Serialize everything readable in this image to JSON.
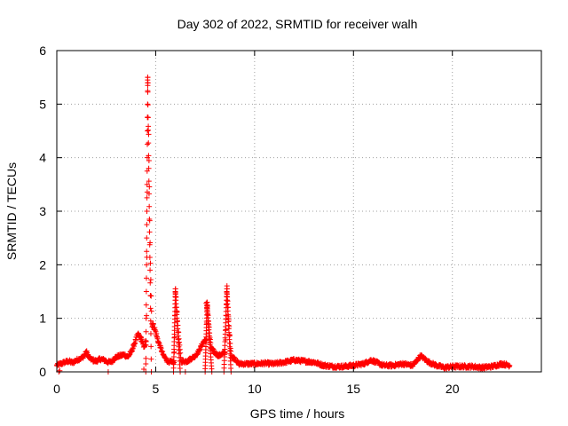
{
  "chart_data": {
    "type": "scatter",
    "title": "Day 302 of 2022, SRMTID for receiver walh",
    "xlabel": "GPS time / hours",
    "ylabel": "SRMTID / TECUs",
    "xlim": [
      0,
      24.5
    ],
    "ylim": [
      0,
      6
    ],
    "xticks": [
      0,
      5,
      10,
      15,
      20
    ],
    "yticks": [
      0,
      1,
      2,
      3,
      4,
      5,
      6
    ],
    "grid": true,
    "marker": "plus",
    "series_color": "#ff0000",
    "baseline": [
      [
        0.0,
        0.12
      ],
      [
        0.2,
        0.15
      ],
      [
        0.4,
        0.18
      ],
      [
        0.6,
        0.2
      ],
      [
        0.8,
        0.17
      ],
      [
        1.0,
        0.22
      ],
      [
        1.2,
        0.25
      ],
      [
        1.4,
        0.3
      ],
      [
        1.5,
        0.38
      ],
      [
        1.6,
        0.28
      ],
      [
        1.8,
        0.22
      ],
      [
        2.0,
        0.2
      ],
      [
        2.2,
        0.24
      ],
      [
        2.4,
        0.22
      ],
      [
        2.6,
        0.18
      ],
      [
        2.8,
        0.2
      ],
      [
        3.0,
        0.28
      ],
      [
        3.2,
        0.3
      ],
      [
        3.4,
        0.32
      ],
      [
        3.6,
        0.28
      ],
      [
        3.8,
        0.4
      ],
      [
        4.0,
        0.6
      ],
      [
        4.1,
        0.7
      ],
      [
        4.2,
        0.65
      ],
      [
        4.3,
        0.6
      ],
      [
        4.4,
        0.45
      ],
      [
        4.8,
        0.9
      ],
      [
        4.9,
        0.85
      ],
      [
        5.0,
        0.75
      ],
      [
        5.1,
        0.6
      ],
      [
        5.2,
        0.5
      ],
      [
        5.3,
        0.4
      ],
      [
        5.4,
        0.3
      ],
      [
        5.6,
        0.2
      ],
      [
        5.8,
        0.18
      ],
      [
        6.6,
        0.2
      ],
      [
        6.8,
        0.25
      ],
      [
        7.0,
        0.3
      ],
      [
        7.2,
        0.4
      ],
      [
        7.4,
        0.55
      ],
      [
        7.5,
        0.6
      ],
      [
        8.0,
        0.35
      ],
      [
        8.2,
        0.3
      ],
      [
        8.4,
        0.35
      ],
      [
        9.0,
        0.25
      ],
      [
        9.2,
        0.15
      ],
      [
        9.5,
        0.15
      ],
      [
        10.0,
        0.15
      ],
      [
        10.5,
        0.16
      ],
      [
        11.0,
        0.15
      ],
      [
        11.5,
        0.18
      ],
      [
        12.0,
        0.22
      ],
      [
        12.5,
        0.2
      ],
      [
        13.0,
        0.18
      ],
      [
        13.5,
        0.12
      ],
      [
        14.0,
        0.1
      ],
      [
        14.5,
        0.1
      ],
      [
        15.0,
        0.12
      ],
      [
        15.5,
        0.15
      ],
      [
        15.9,
        0.22
      ],
      [
        16.5,
        0.12
      ],
      [
        17.0,
        0.12
      ],
      [
        17.5,
        0.15
      ],
      [
        18.0,
        0.12
      ],
      [
        18.4,
        0.3
      ],
      [
        18.8,
        0.18
      ],
      [
        19.2,
        0.12
      ],
      [
        19.6,
        0.08
      ],
      [
        20.0,
        0.1
      ],
      [
        20.5,
        0.1
      ],
      [
        21.0,
        0.1
      ],
      [
        21.5,
        0.08
      ],
      [
        22.0,
        0.1
      ],
      [
        22.5,
        0.15
      ],
      [
        22.9,
        0.12
      ]
    ],
    "peaks": [
      {
        "center": 4.6,
        "peak": 5.5,
        "rise": 0.1,
        "fall": 0.3
      },
      {
        "center": 6.0,
        "peak": 1.55,
        "rise": 0.1,
        "fall": 0.4
      },
      {
        "center": 7.6,
        "peak": 1.3,
        "rise": 0.1,
        "fall": 0.4
      },
      {
        "center": 8.6,
        "peak": 1.55,
        "rise": 0.15,
        "fall": 0.35
      }
    ],
    "outliers": [
      [
        0.1,
        0.0
      ],
      [
        0.15,
        0.02
      ],
      [
        2.6,
        0.0
      ],
      [
        4.4,
        0.05
      ],
      [
        4.5,
        0.15
      ],
      [
        6.5,
        0.0
      ],
      [
        7.55,
        1.28
      ]
    ]
  }
}
